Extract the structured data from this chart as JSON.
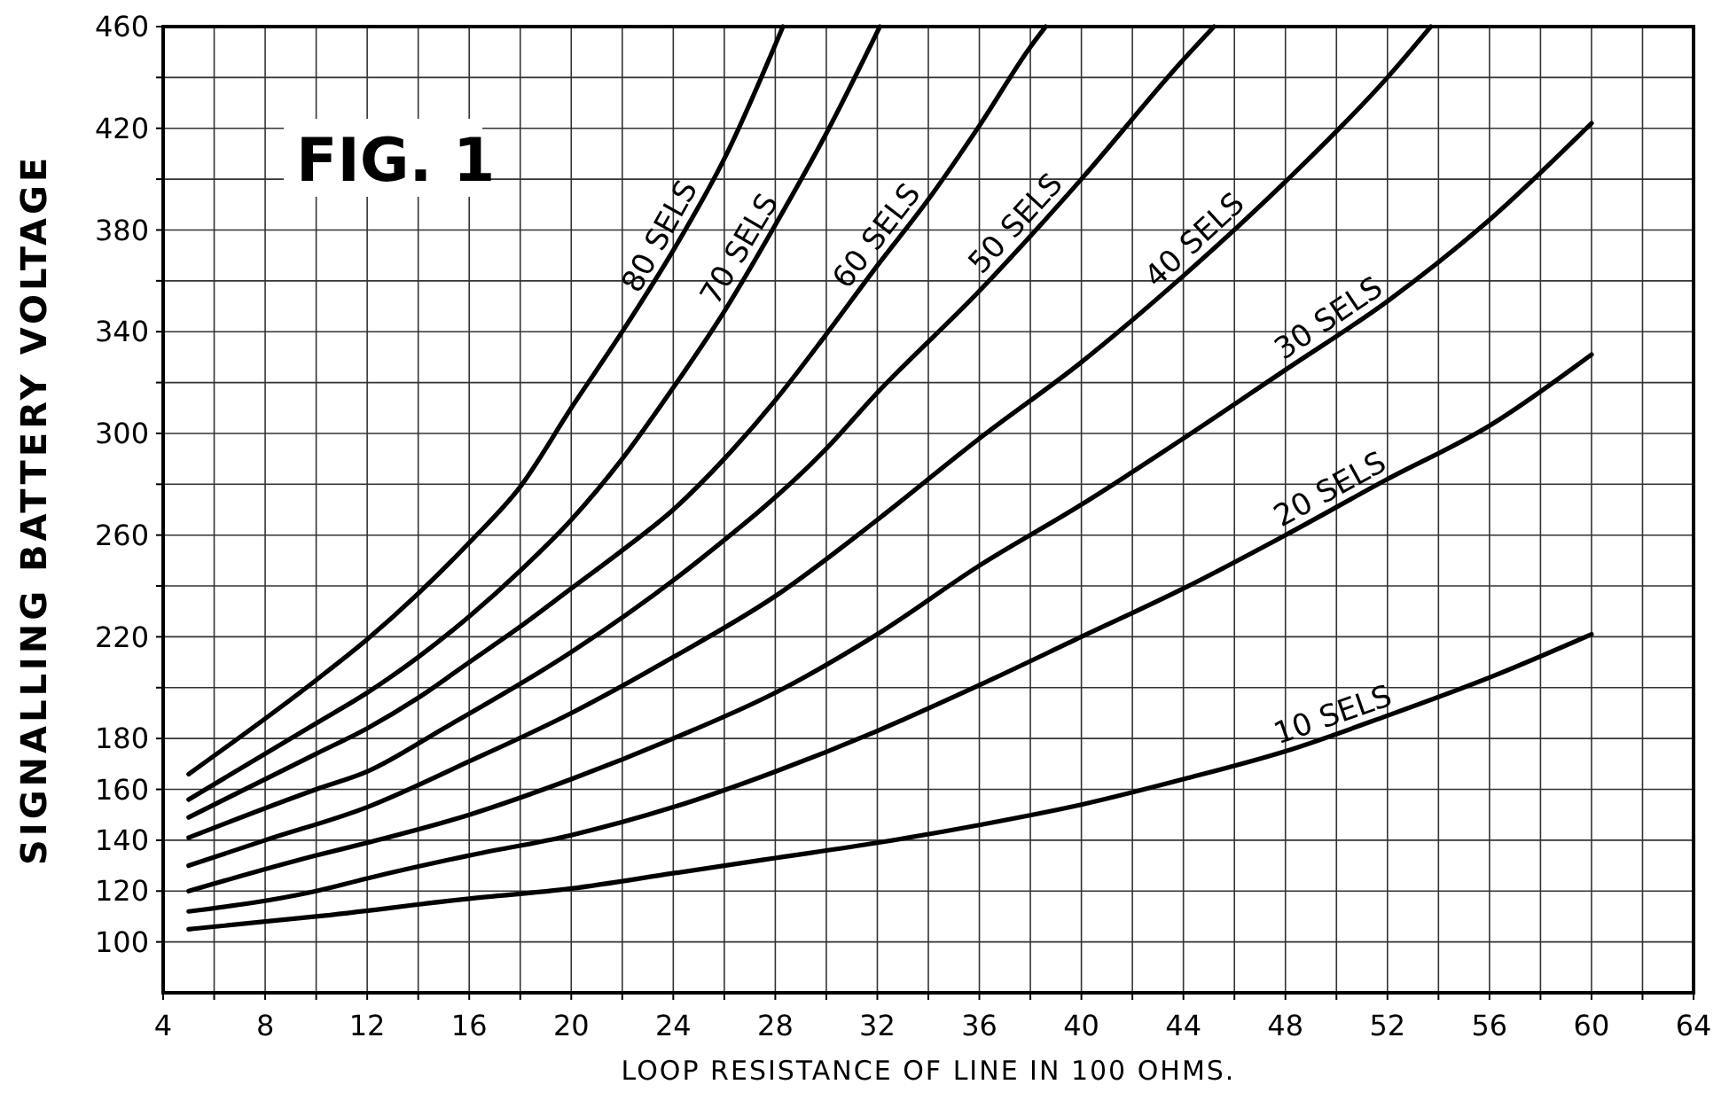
{
  "chart_data": {
    "type": "line",
    "title": "FIG. 1",
    "xlabel": "LOOP RESISTANCE OF LINE IN 100 OHMS.",
    "ylabel": "SIGNALLING BATTERY VOLTAGE",
    "xlim": [
      4,
      64
    ],
    "ylim": [
      80,
      460
    ],
    "xticks": [
      4,
      {
        "value": 6,
        "label": null
      },
      8,
      {
        "value": 10,
        "label": null
      },
      12,
      {
        "value": 14,
        "label": null
      },
      16,
      {
        "value": 18,
        "label": null
      },
      20,
      {
        "value": 22,
        "label": null
      },
      24,
      {
        "value": 26,
        "label": null
      },
      28,
      {
        "value": 30,
        "label": null
      },
      32,
      {
        "value": 34,
        "label": null
      },
      36,
      {
        "value": 38,
        "label": null
      },
      40,
      {
        "value": 42,
        "label": null
      },
      44,
      {
        "value": 46,
        "label": null
      },
      48,
      {
        "value": 50,
        "label": null
      },
      52,
      {
        "value": 54,
        "label": null
      },
      56,
      {
        "value": 58,
        "label": null
      },
      60,
      {
        "value": 62,
        "label": null
      },
      64
    ],
    "yticks": [
      100,
      120,
      140,
      160,
      180,
      {
        "value": 200,
        "label": null
      },
      220,
      {
        "value": 240,
        "label": null
      },
      260,
      {
        "value": 280,
        "label": null
      },
      300,
      {
        "value": 320,
        "label": null
      },
      340,
      {
        "value": 360,
        "label": null
      },
      380,
      {
        "value": 400,
        "label": null
      },
      420,
      {
        "value": 440,
        "label": null
      },
      460
    ],
    "grid": true,
    "legend": false,
    "marker": "none",
    "line_style": "solid",
    "series": [
      {
        "name": "10 SELS",
        "color": "#000000",
        "x": [
          5,
          10,
          16,
          20,
          24,
          28,
          32,
          36,
          40,
          44,
          48,
          52,
          56,
          60
        ],
        "values": [
          105,
          110,
          117,
          121,
          127,
          133,
          139,
          146,
          154,
          164,
          175,
          189,
          204,
          221
        ]
      },
      {
        "name": "20 SELS",
        "color": "#000000",
        "x": [
          5,
          10,
          12,
          16,
          20,
          24,
          28,
          32,
          36,
          40,
          44,
          48,
          52,
          56,
          60
        ],
        "values": [
          112,
          120,
          125,
          134,
          142,
          153,
          167,
          183,
          201,
          220,
          239,
          260,
          282,
          303,
          331
        ]
      },
      {
        "name": "30 SELS",
        "color": "#000000",
        "x": [
          5,
          10,
          12,
          16,
          20,
          24,
          28,
          32,
          36,
          40,
          44,
          48,
          52,
          56,
          60
        ],
        "values": [
          120,
          134,
          139,
          150,
          164,
          180,
          198,
          221,
          248,
          272,
          298,
          325,
          352,
          384,
          422
        ]
      },
      {
        "name": "40 SELS",
        "color": "#000000",
        "x": [
          5,
          8,
          12,
          16,
          20,
          24,
          28,
          32,
          36,
          40,
          44,
          48,
          52,
          53.7
        ],
        "values": [
          130,
          140,
          153,
          171,
          190,
          212,
          236,
          266,
          298,
          328,
          362,
          399,
          440,
          460
        ]
      },
      {
        "name": "50 SELS",
        "color": "#000000",
        "x": [
          5,
          10,
          12,
          15,
          20,
          25,
          30,
          32,
          36,
          40,
          44,
          45.2
        ],
        "values": [
          141,
          160,
          167,
          184,
          214,
          250,
          294,
          316,
          356,
          400,
          447,
          460
        ]
      },
      {
        "name": "60 SELS",
        "color": "#000000",
        "x": [
          5,
          10,
          12,
          14,
          16,
          18,
          20,
          22,
          24,
          26,
          28,
          30,
          32,
          34,
          36,
          38,
          38.6
        ],
        "values": [
          149,
          174,
          184,
          196,
          210,
          224,
          239,
          254,
          270,
          290,
          313,
          339,
          366,
          392,
          421,
          452,
          460
        ]
      },
      {
        "name": "70 SELS",
        "color": "#000000",
        "x": [
          5,
          10,
          12,
          14,
          16,
          18,
          20,
          22,
          24,
          26,
          28,
          30,
          32.1
        ],
        "values": [
          156,
          186,
          198,
          212,
          228,
          246,
          266,
          290,
          318,
          348,
          382,
          418,
          460
        ]
      },
      {
        "name": "80 SELS",
        "color": "#000000",
        "x": [
          5,
          10,
          12,
          14,
          16,
          18,
          20,
          22,
          24,
          26,
          28.3
        ],
        "values": [
          166,
          203,
          219,
          237,
          257,
          279,
          310,
          340,
          372,
          408,
          460
        ]
      }
    ]
  }
}
